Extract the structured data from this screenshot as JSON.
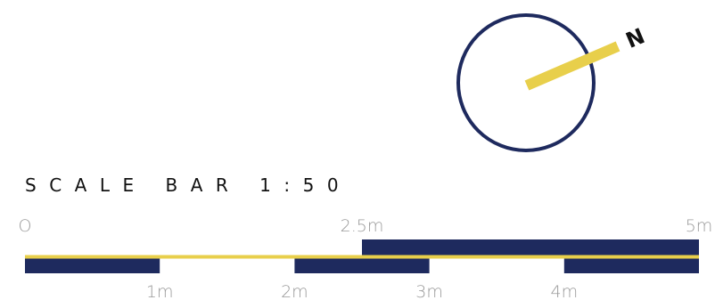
{
  "title": "SCALE BAR 1:50",
  "north_label": "N",
  "scale": {
    "total_m": 5,
    "upper_labels": [
      {
        "m": 0,
        "text": "O"
      },
      {
        "m": 2.5,
        "text": "2.5m"
      },
      {
        "m": 5,
        "text": "5m"
      }
    ],
    "lower_labels": [
      {
        "m": 1,
        "text": "1m"
      },
      {
        "m": 2,
        "text": "2m"
      },
      {
        "m": 3,
        "text": "3m"
      },
      {
        "m": 4,
        "text": "4m"
      }
    ],
    "lower_segments": [
      {
        "from": 0,
        "to": 1
      },
      {
        "from": 2,
        "to": 3
      },
      {
        "from": 4,
        "to": 5
      }
    ],
    "upper_segments": [
      {
        "from": 2.5,
        "to": 5
      }
    ]
  },
  "colors": {
    "navy": "#1e2a5e",
    "yellow": "#e8cf4b",
    "title": "#111111",
    "tick_label": "#9a9a9a"
  }
}
